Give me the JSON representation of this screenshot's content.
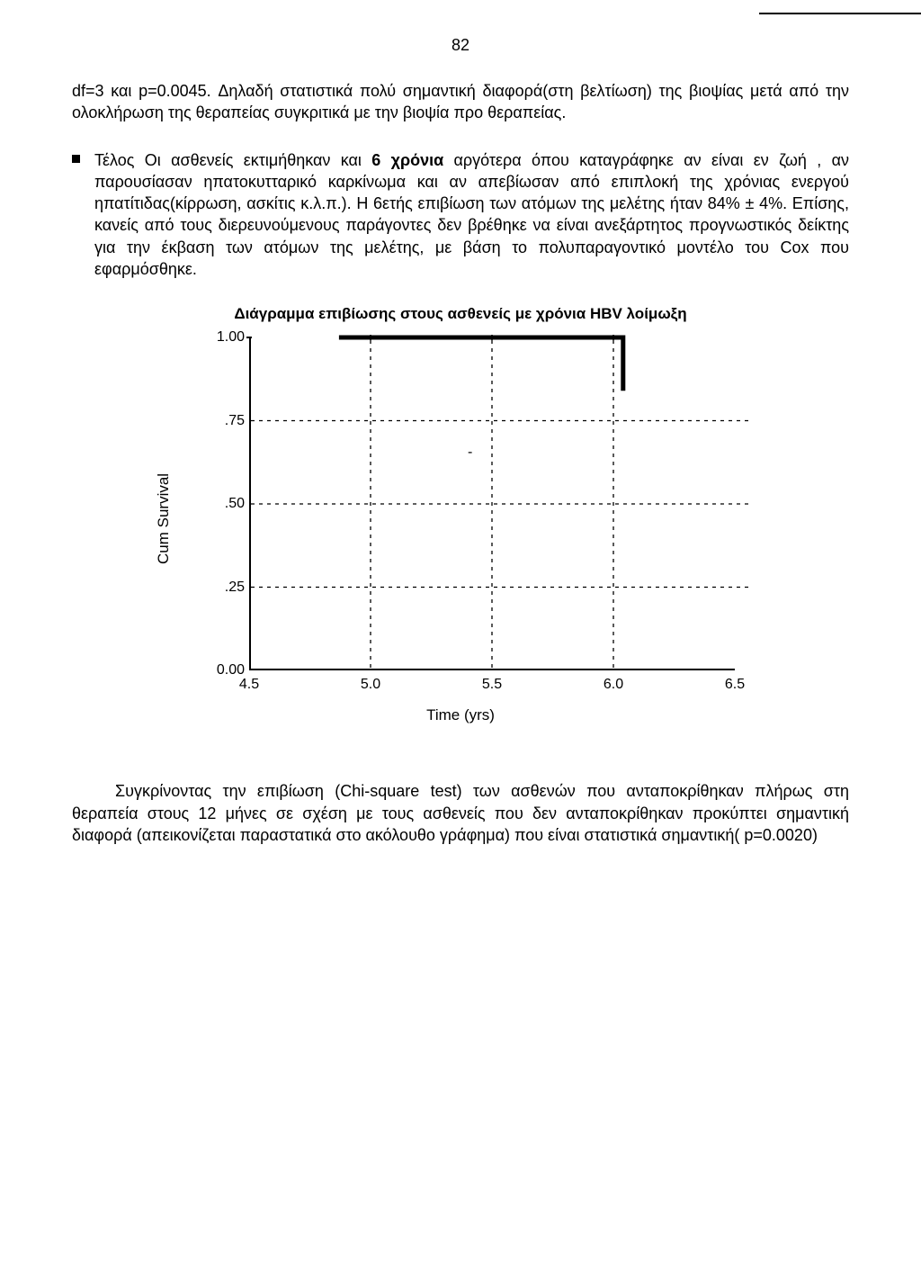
{
  "page_number": "82",
  "para1": "df=3 και p=0.0045. Δηλαδή στατιστικά πολύ σημαντική διαφορά(στη βελτίωση) της βιοψίας μετά από την ολοκλήρωση της θεραπείας συγκριτικά με την βιοψία προ θεραπείας.",
  "bullet": {
    "pre": "Τέλος Οι ασθενείς εκτιμήθηκαν και ",
    "bold": "6 χρόνια",
    "post": " αργότερα όπου καταγράφηκε αν είναι εν ζωή , αν παρουσίασαν ηπατοκυτταρικό καρκίνωμα και αν απεβίωσαν από επιπλοκή της χρόνιας ενεργού ηπατίτιδας(κίρρωση, ασκίτις κ.λ.π.). Η 6ετής επιβίωση των ατόμων της μελέτης ήταν 84% ± 4%. Επίσης, κανείς από τους διερευνούμενους παράγοντες δεν βρέθηκε να είναι ανεξάρτητος προγνωστικός δείκτης για την έκβαση των ατόμων της μελέτης, με βάση το πολυπαραγοντικό μοντέλο του Cox που εφαρμόσθηκε."
  },
  "chart": {
    "title": "Διάγραμμα επιβίωσης στους ασθενείς με χρόνια HBV λοίμωξη",
    "type": "kaplan-meier / step-line",
    "xlabel": "Time (yrs)",
    "ylabel": "Cum Survival",
    "xlim": [
      4.5,
      6.5
    ],
    "ylim": [
      0.0,
      1.0
    ],
    "yticks": [
      {
        "value": 1.0,
        "label": "1.00"
      },
      {
        "value": 0.75,
        "label": ".75"
      },
      {
        "value": 0.5,
        "label": ".50"
      },
      {
        "value": 0.25,
        "label": ".25"
      },
      {
        "value": 0.0,
        "label": "0.00"
      }
    ],
    "xticks": [
      {
        "value": 4.5,
        "label": "4.5"
      },
      {
        "value": 5.0,
        "label": "5.0"
      },
      {
        "value": 5.5,
        "label": "5.5"
      },
      {
        "value": 6.0,
        "label": "6.0"
      },
      {
        "value": 6.5,
        "label": "6.5"
      }
    ],
    "grid_vlines_x": [
      5.0,
      5.5,
      6.0
    ],
    "survival_line": [
      {
        "x": 4.87,
        "y": 1.0
      },
      {
        "x": 6.04,
        "y": 1.0
      },
      {
        "x": 6.04,
        "y": 0.84
      }
    ],
    "line_color": "#000000",
    "line_width": 5,
    "grid_color": "#000000",
    "dash_pattern": "4,5",
    "background_color": "#ffffff",
    "axis_line_color": "#000000",
    "label_fontsize": 17,
    "tick_fontsize": 16,
    "title_fontsize": 17,
    "stray_mark": "-"
  },
  "para2": "Συγκρίνοντας την επιβίωση (Chi-square test) των ασθενών που ανταποκρίθηκαν πλήρως στη θεραπεία στους 12 μήνες σε σχέση με τους ασθενείς που δεν ανταποκρίθηκαν προκύπτει σημαντική διαφορά (απεικονίζεται παραστατικά στο ακόλουθο γράφημα) που είναι στατιστικά σημαντική( p=0.0020)"
}
